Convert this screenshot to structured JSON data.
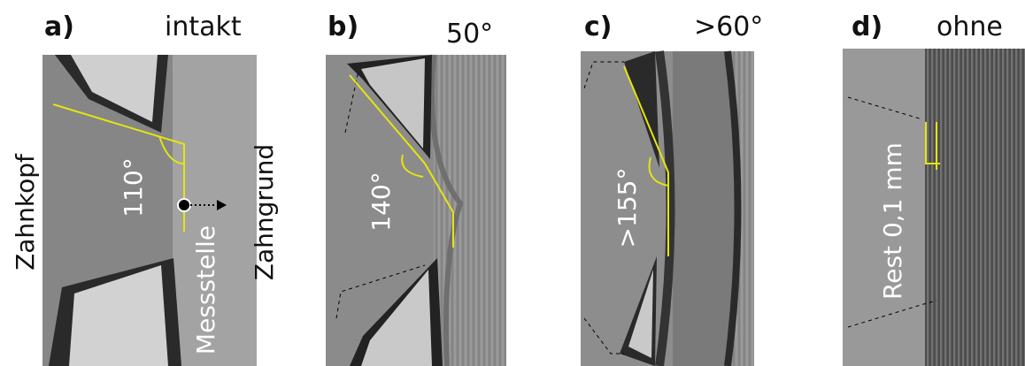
{
  "panels": [
    {
      "letter": "a)",
      "title": "intakt",
      "angle": "110°"
    },
    {
      "letter": "b)",
      "title": "50°",
      "angle": "140°"
    },
    {
      "letter": "c)",
      "title": ">60°",
      "angle": ">155°"
    },
    {
      "letter": "d)",
      "title": "ohne",
      "angle": "Rest 0,1 mm"
    }
  ],
  "labels": {
    "left": "Zahnkopf",
    "right": "Zahngrund",
    "point": "Messstelle"
  }
}
